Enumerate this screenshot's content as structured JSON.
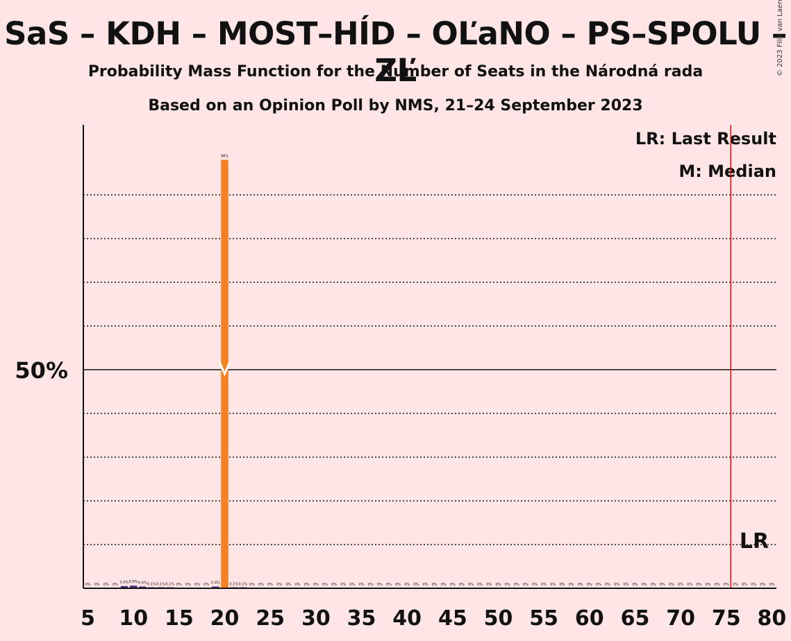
{
  "header": {
    "title": "SaS – KDH – MOST–HÍD – OĽaNO – PS–SPOLU – ZĽ",
    "subtitle1": "Probability Mass Function for the Number of Seats in the Národná rada",
    "subtitle2": "Based on an Opinion Poll by NMS, 21–24 September 2023",
    "copyright": "© 2023 Filip van Laenen"
  },
  "legend": {
    "last_result": "LR: Last Result",
    "median": "M: Median",
    "lr_marker": "LR"
  },
  "colors": {
    "background": "#FFE5E5",
    "bar": "#F5821F",
    "bar_small": "#4B2E83",
    "last_result_line": "#E00000",
    "text": "#111111"
  },
  "chart_data": {
    "type": "bar",
    "y_axis_label_50": "50%",
    "x": [
      5,
      6,
      7,
      8,
      9,
      10,
      11,
      12,
      13,
      14,
      15,
      16,
      17,
      18,
      19,
      20,
      21,
      22,
      23,
      24,
      25,
      26,
      27,
      28,
      29,
      30,
      31,
      32,
      33,
      34,
      35,
      36,
      37,
      38,
      39,
      40,
      41,
      42,
      43,
      44,
      45,
      46,
      47,
      48,
      49,
      50,
      51,
      52,
      53,
      54,
      55,
      56,
      57,
      58,
      59,
      60,
      61,
      62,
      63,
      64,
      65,
      66,
      67,
      68,
      69,
      70,
      71,
      72,
      73,
      74,
      75,
      76,
      77,
      78,
      79,
      80
    ],
    "values": [
      0,
      0,
      0,
      0,
      0.5,
      0.6,
      0.4,
      0.1,
      0.1,
      0.1,
      0,
      0,
      0,
      0,
      0.4,
      98,
      0.1,
      0.1,
      0,
      0,
      0,
      0,
      0,
      0,
      0,
      0,
      0,
      0,
      0,
      0,
      0,
      0,
      0,
      0,
      0,
      0,
      0,
      0,
      0,
      0,
      0,
      0,
      0,
      0,
      0,
      0,
      0,
      0,
      0,
      0,
      0,
      0,
      0,
      0,
      0,
      0,
      0,
      0,
      0,
      0,
      0,
      0,
      0,
      0,
      0,
      0,
      0,
      0,
      0,
      0,
      0,
      0,
      0,
      0,
      0,
      0
    ],
    "labels": [
      "0%",
      "0%",
      "0%",
      "0%",
      "0.5%",
      "0.6%",
      "0.4%",
      "0.1%",
      "0.1%",
      "0.1%",
      "0%",
      "0%",
      "0%",
      "0%",
      "0.4%",
      "98%",
      "0.1%",
      "0.1%",
      "0%",
      "0%",
      "0%",
      "0%",
      "0%",
      "0%",
      "0%",
      "0%",
      "0%",
      "0%",
      "0%",
      "0%",
      "0%",
      "0%",
      "0%",
      "0%",
      "0%",
      "0%",
      "0%",
      "0%",
      "0%",
      "0%",
      "0%",
      "0%",
      "0%",
      "0%",
      "0%",
      "0%",
      "0%",
      "0%",
      "0%",
      "0%",
      "0%",
      "0%",
      "0%",
      "0%",
      "0%",
      "0%",
      "0%",
      "0%",
      "0%",
      "0%",
      "0%",
      "0%",
      "0%",
      "0%",
      "0%",
      "0%",
      "0%",
      "0%",
      "0%",
      "0%",
      "0%",
      "0%",
      "0%",
      "0%",
      "0%",
      "0%"
    ],
    "x_ticks": [
      5,
      10,
      15,
      20,
      25,
      30,
      35,
      40,
      45,
      50,
      55,
      60,
      65,
      70,
      75,
      80
    ],
    "ylim": [
      0,
      106
    ],
    "gridlines": [
      10,
      20,
      30,
      40,
      60,
      70,
      80,
      90
    ],
    "median": 20,
    "last_result": 76
  }
}
